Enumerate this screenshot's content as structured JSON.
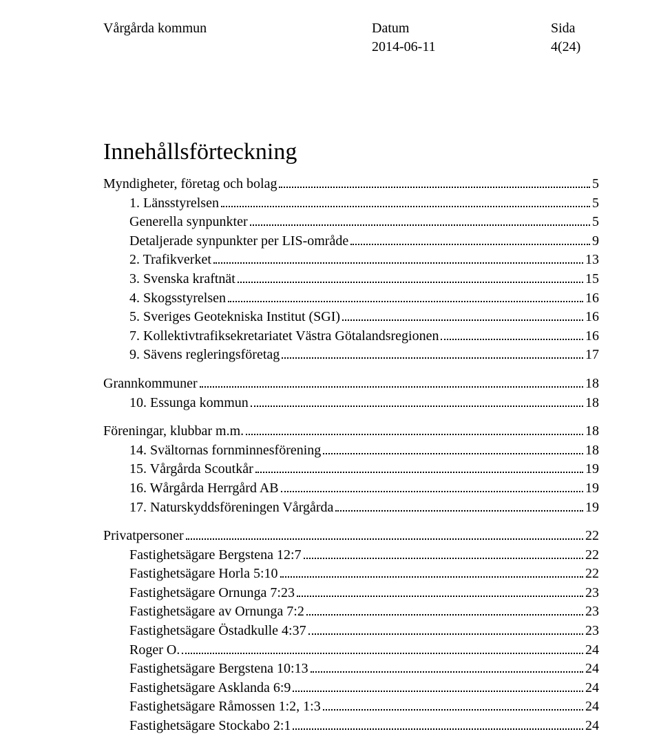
{
  "header": {
    "org": "Vårgårda kommun",
    "datum_label": "Datum",
    "datum_value": "2014-06-11",
    "sida_label": "Sida",
    "sida_value": "4(24)"
  },
  "toc": {
    "title": "Innehållsförteckning",
    "groups": [
      {
        "head": {
          "label": "Myndigheter, företag och bolag",
          "page": "5"
        },
        "items": [
          {
            "label": "1. Länsstyrelsen",
            "page": "5"
          },
          {
            "label": "Generella synpunkter",
            "page": "5"
          },
          {
            "label": "Detaljerade synpunkter per LIS-område",
            "page": "9"
          },
          {
            "label": "2. Trafikverket",
            "page": "13"
          },
          {
            "label": "3. Svenska kraftnät",
            "page": "15"
          },
          {
            "label": "4. Skogsstyrelsen",
            "page": "16"
          },
          {
            "label": "5. Sveriges Geotekniska Institut (SGI)",
            "page": "16"
          },
          {
            "label": "7. Kollektivtrafiksekretariatet Västra Götalandsregionen",
            "page": "16"
          },
          {
            "label": "9. Sävens regleringsföretag",
            "page": "17"
          }
        ]
      },
      {
        "head": {
          "label": "Grannkommuner",
          "page": "18"
        },
        "items": [
          {
            "label": "10. Essunga kommun",
            "page": "18"
          }
        ]
      },
      {
        "head": {
          "label": "Föreningar, klubbar m.m.",
          "page": "18"
        },
        "items": [
          {
            "label": "14. Svältornas fornminnesförening",
            "page": "18"
          },
          {
            "label": "15. Vårgårda Scoutkår",
            "page": "19"
          },
          {
            "label": "16. Wårgårda Herrgård AB",
            "page": "19"
          },
          {
            "label": "17. Naturskyddsföreningen Vårgårda",
            "page": "19"
          }
        ]
      },
      {
        "head": {
          "label": "Privatpersoner",
          "page": "22"
        },
        "items": [
          {
            "label": "Fastighetsägare Bergstena 12:7",
            "page": "22"
          },
          {
            "label": "Fastighetsägare Horla 5:10",
            "page": "22"
          },
          {
            "label": "Fastighetsägare Ornunga 7:23",
            "page": "23"
          },
          {
            "label": "Fastighetsägare av Ornunga 7:2",
            "page": "23"
          },
          {
            "label": "Fastighetsägare Östadkulle 4:37",
            "page": "23"
          },
          {
            "label": "Roger O. ",
            "page": "24"
          },
          {
            "label": "Fastighetsägare Bergstena 10:13",
            "page": "24"
          },
          {
            "label": "Fastighetsägare Asklanda 6:9",
            "page": "24"
          },
          {
            "label": "Fastighetsägare Råmossen 1:2, 1:3",
            "page": "24"
          },
          {
            "label": "Fastighetsägare Stockabo 2:1",
            "page": "24"
          }
        ]
      }
    ]
  },
  "style": {
    "page_bg": "#ffffff",
    "text_color": "#000000",
    "font_family": "Times New Roman",
    "body_fontsize_pt": 15,
    "title_fontsize_pt": 26,
    "leader_style": "dotted"
  }
}
